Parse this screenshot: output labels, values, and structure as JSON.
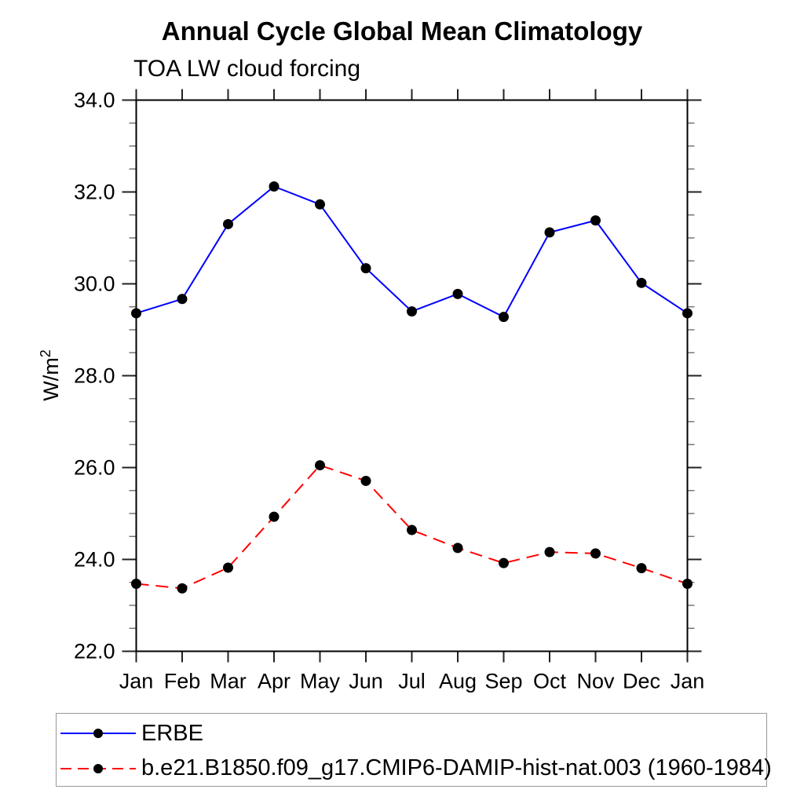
{
  "header": {
    "title": "Annual Cycle Global Mean Climatology",
    "subtitle": "TOA LW cloud forcing"
  },
  "chart_data": {
    "type": "line",
    "title": "Annual Cycle Global Mean Climatology",
    "subtitle": "TOA LW cloud forcing",
    "ylabel_base": "W/m",
    "ylabel_sup": "2",
    "categories": [
      "Jan",
      "Feb",
      "Mar",
      "Apr",
      "May",
      "Jun",
      "Jul",
      "Aug",
      "Sep",
      "Oct",
      "Nov",
      "Dec",
      "Jan"
    ],
    "series": [
      {
        "name": "ERBE",
        "color": "#0000ff",
        "style": "solid",
        "marker": "circle",
        "marker_color": "#000000",
        "values": [
          29.36,
          29.67,
          31.3,
          32.12,
          31.73,
          30.34,
          29.4,
          29.78,
          29.28,
          31.12,
          31.38,
          30.02,
          29.36
        ]
      },
      {
        "name": "b.e21.B1850.f09_g17.CMIP6-DAMIP-hist-nat.003 (1960-1984)",
        "color": "#ff0000",
        "style": "dashed",
        "marker": "circle",
        "marker_color": "#000000",
        "values": [
          23.47,
          23.37,
          23.82,
          24.93,
          26.05,
          25.71,
          24.64,
          24.25,
          23.92,
          24.16,
          24.13,
          23.81,
          23.47
        ]
      }
    ],
    "ylim": [
      22.0,
      34.0
    ],
    "ytick_major_step": 2.0,
    "ytick_minor_step": 0.5,
    "ytick_labels": [
      "22.0",
      "24.0",
      "26.0",
      "28.0",
      "30.0",
      "32.0",
      "34.0"
    ],
    "grid": false,
    "legend_position": "bottom",
    "axis_colors": {
      "frame": "#000000",
      "major_tick": "#222222",
      "minor_tick": "#777777",
      "text": "#000000"
    }
  }
}
